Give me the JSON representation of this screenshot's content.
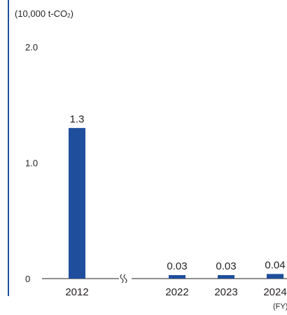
{
  "chart_data": {
    "type": "bar",
    "unit_prefix": "(10,000 t-CO",
    "unit_subscript": "2",
    "unit_suffix": ")",
    "categories": [
      "2012",
      "2022",
      "2023",
      "2024"
    ],
    "values": [
      1.3,
      0.03,
      0.03,
      0.04
    ],
    "value_labels": [
      "1.3",
      "0.03",
      "0.03",
      "0.04"
    ],
    "ylim": [
      0,
      2.0
    ],
    "yticks": [
      {
        "value": 0,
        "label": "0"
      },
      {
        "value": 1.0,
        "label": "1.0"
      },
      {
        "value": 2.0,
        "label": "2.0"
      }
    ],
    "x_unit": "(FY)",
    "axis_break_after": "2012",
    "grid": false,
    "bar_color": "#1f4e9c",
    "axis_color": "#231f20"
  }
}
